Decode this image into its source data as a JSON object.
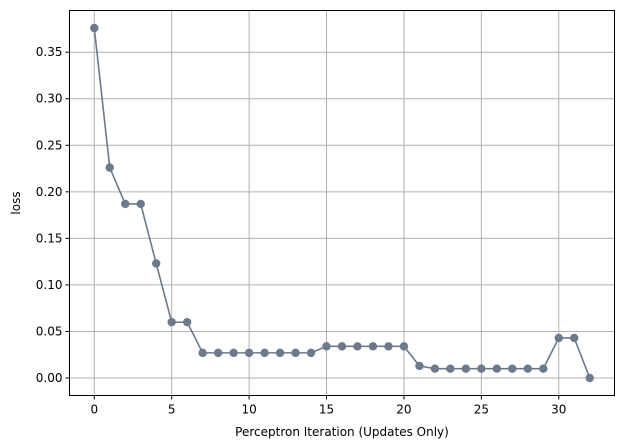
{
  "chart_data": {
    "type": "line",
    "title": "",
    "xlabel": "Perceptron Iteration (Updates Only)",
    "ylabel": "loss",
    "xlim": [
      -1.6,
      33.6
    ],
    "ylim": [
      -0.0188,
      0.3948
    ],
    "xticks": [
      0,
      5,
      10,
      15,
      20,
      25,
      30
    ],
    "yticks": [
      0.0,
      0.05,
      0.1,
      0.15,
      0.2,
      0.25,
      0.3,
      0.35
    ],
    "xtick_labels": [
      "0",
      "5",
      "10",
      "15",
      "20",
      "25",
      "30"
    ],
    "ytick_labels": [
      "0.00",
      "0.05",
      "0.10",
      "0.15",
      "0.20",
      "0.25",
      "0.30",
      "0.35"
    ],
    "grid": true,
    "legend": null,
    "colors": {
      "series": "#6c7a8c",
      "grid": "#b0b0b0",
      "axes": "#000000"
    },
    "series": [
      {
        "marker": "circle",
        "x": [
          0,
          1,
          2,
          3,
          4,
          5,
          6,
          7,
          8,
          9,
          10,
          11,
          12,
          13,
          14,
          15,
          16,
          17,
          18,
          19,
          20,
          21,
          22,
          23,
          24,
          25,
          26,
          27,
          28,
          29,
          30,
          31,
          32
        ],
        "values": [
          0.376,
          0.226,
          0.187,
          0.187,
          0.123,
          0.06,
          0.06,
          0.027,
          0.027,
          0.027,
          0.027,
          0.027,
          0.027,
          0.027,
          0.027,
          0.034,
          0.034,
          0.034,
          0.034,
          0.034,
          0.034,
          0.013,
          0.01,
          0.01,
          0.01,
          0.01,
          0.01,
          0.01,
          0.01,
          0.01,
          0.043,
          0.043,
          0.0
        ]
      }
    ]
  }
}
